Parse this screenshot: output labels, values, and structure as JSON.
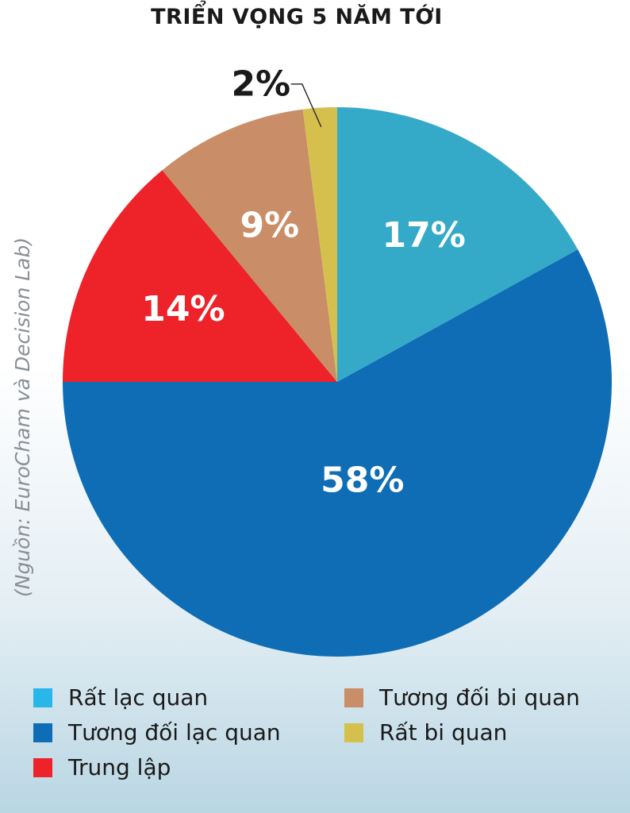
{
  "chart_data": {
    "type": "pie",
    "title": "TRIỂN VỌNG 5 NĂM TỚI",
    "source": "(Nguồn: EuroCham và Decision Lab)",
    "slices": [
      {
        "label": "Rất lạc quan",
        "value": 17,
        "display": "17%",
        "color": "#34aac8",
        "legend_color": "#29b6e8"
      },
      {
        "label": "Tương đối lạc quan",
        "value": 58,
        "display": "58%",
        "color": "#0e6db5",
        "legend_color": "#0e6db5"
      },
      {
        "label": "Trung lập",
        "value": 14,
        "display": "14%",
        "color": "#ee2229",
        "legend_color": "#ee2229"
      },
      {
        "label": "Tương đối bi quan",
        "value": 9,
        "display": "9%",
        "color": "#c98d67",
        "legend_color": "#c98d67"
      },
      {
        "label": "Rất bi quan",
        "value": 2,
        "display": "2%",
        "color": "#d5c04e",
        "legend_color": "#d5c04e"
      }
    ],
    "legend_position": "bottom"
  }
}
